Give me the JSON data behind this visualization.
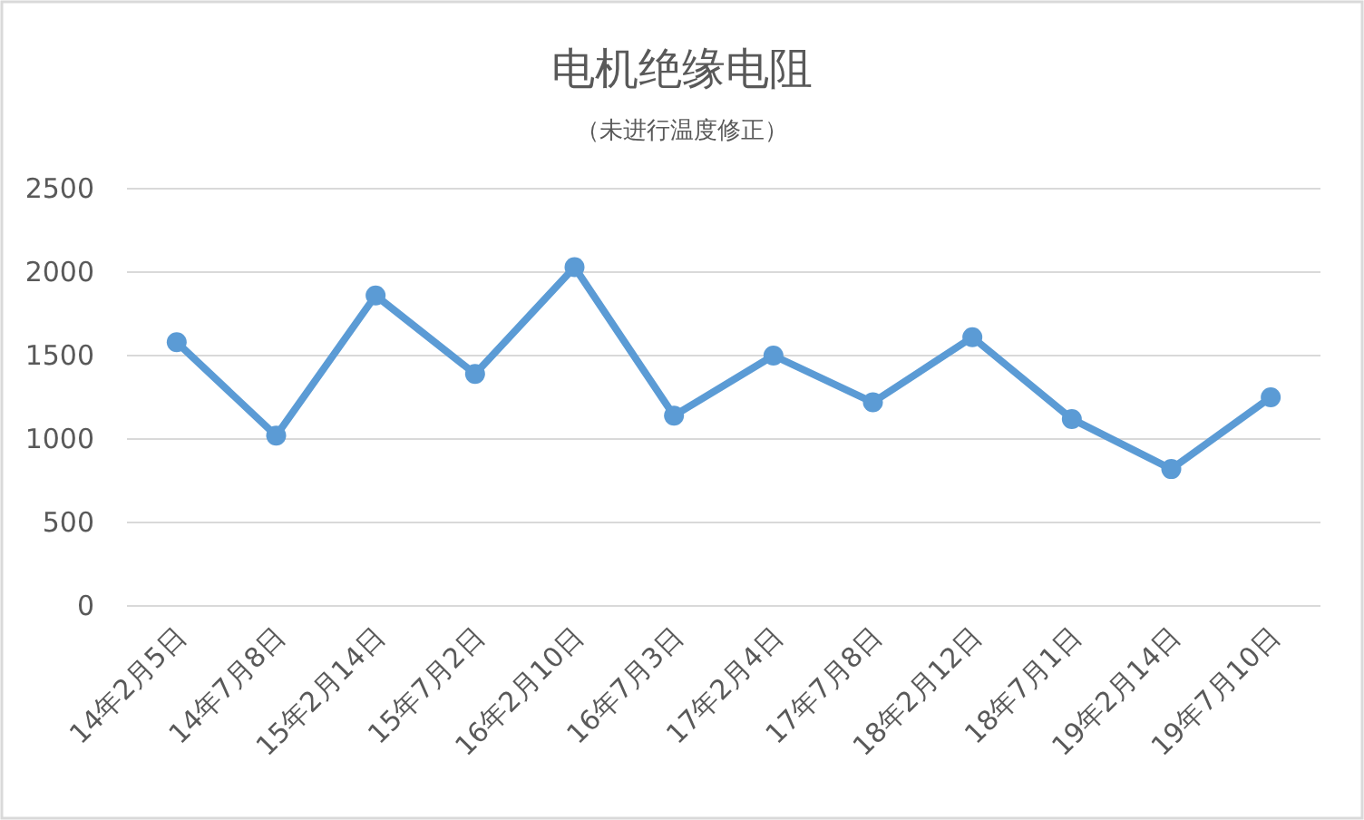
{
  "chart_data": {
    "type": "line",
    "title": "电机绝缘电阻",
    "subtitle": "（未进行温度修正）",
    "categories": [
      "14年2月5日",
      "14年7月8日",
      "15年2月14日",
      "15年7月2日",
      "16年2月10日",
      "16年7月3日",
      "17年2月4日",
      "17年7月8日",
      "18年2月12日",
      "18年7月1日",
      "19年2月14日",
      "19年7月10日"
    ],
    "series": [
      {
        "color": "#5b9bd5",
        "values": [
          1580,
          1020,
          1860,
          1390,
          2030,
          1140,
          1500,
          1220,
          1610,
          1120,
          820,
          1250
        ]
      }
    ],
    "ylim": [
      0,
      2500
    ],
    "yticks": [
      0,
      500,
      1000,
      1500,
      2000,
      2500
    ],
    "grid": "y",
    "marker": "circle"
  }
}
